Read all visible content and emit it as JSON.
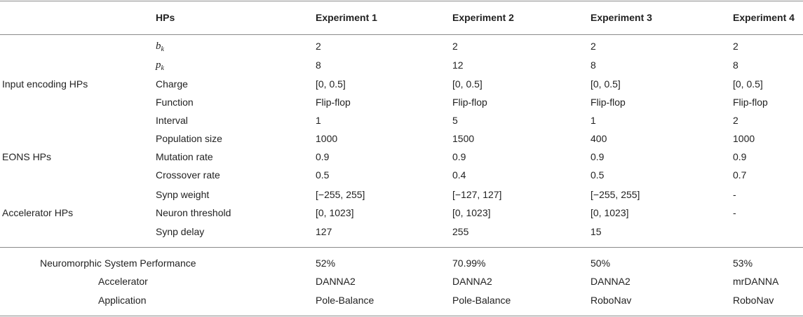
{
  "headers": [
    "HPs",
    "Experiment 1",
    "Experiment 2",
    "Experiment 3",
    "Experiment 4"
  ],
  "groups": [
    "Input encoding HPs",
    "EONS HPs",
    "Accelerator HPs"
  ],
  "rows": [
    {
      "hp": "b",
      "sub": "k",
      "values": [
        "2",
        "2",
        "2",
        "2"
      ]
    },
    {
      "hp": "p",
      "sub": "k",
      "values": [
        "8",
        "12",
        "8",
        "8"
      ]
    },
    {
      "hp": "Charge",
      "values": [
        "[0, 0.5]",
        "[0, 0.5]",
        "[0, 0.5]",
        "[0, 0.5]"
      ]
    },
    {
      "hp": "Function",
      "values": [
        "Flip-flop",
        "Flip-flop",
        "Flip-flop",
        "Flip-flop"
      ]
    },
    {
      "hp": "Interval",
      "values": [
        "1",
        "5",
        "1",
        "2"
      ]
    },
    {
      "hp": "Population size",
      "values": [
        "1000",
        "1500",
        "400",
        "1000"
      ]
    },
    {
      "hp": "Mutation rate",
      "values": [
        "0.9",
        "0.9",
        "0.9",
        "0.9"
      ]
    },
    {
      "hp": "Crossover rate",
      "values": [
        "0.5",
        "0.4",
        "0.5",
        "0.7"
      ]
    },
    {
      "hp": "Synp weight",
      "values": [
        "[−255, 255]",
        "[−127, 127]",
        "[−255, 255]",
        "-"
      ]
    },
    {
      "hp": "Neuron threshold",
      "values": [
        "[0, 1023]",
        "[0, 1023]",
        "[0, 1023]",
        "-"
      ]
    },
    {
      "hp": "Synp delay",
      "values": [
        "127",
        "255",
        "15",
        ""
      ]
    }
  ],
  "summary": [
    {
      "label": "Neuromorphic System Performance",
      "values": [
        "52%",
        "70.99%",
        "50%",
        "53%"
      ]
    },
    {
      "label": "Accelerator",
      "values": [
        "DANNA2",
        "DANNA2",
        "DANNA2",
        "mrDANNA"
      ]
    },
    {
      "label": "Application",
      "values": [
        "Pole-Balance",
        "Pole-Balance",
        "RoboNav",
        "RoboNav"
      ]
    }
  ]
}
